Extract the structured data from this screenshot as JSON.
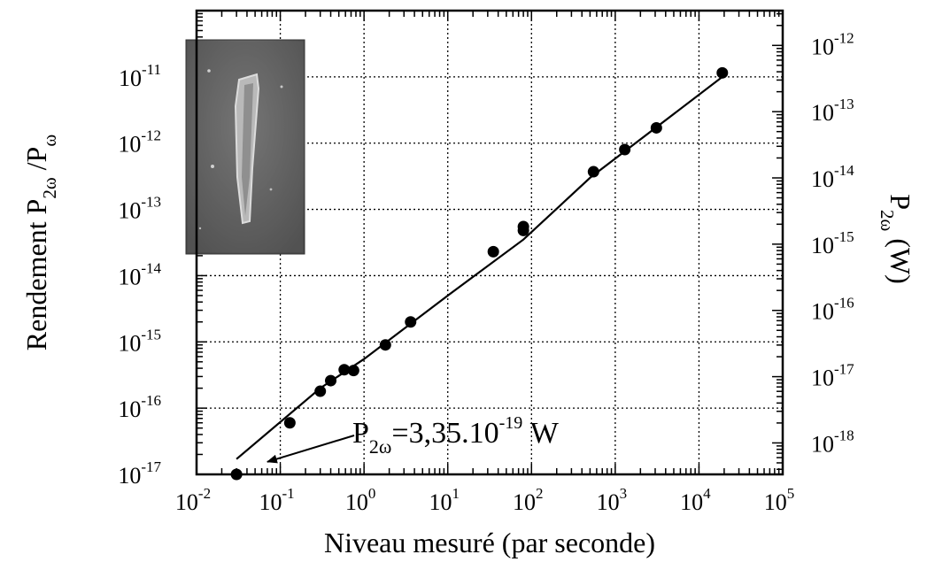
{
  "chart_data": {
    "type": "scatter",
    "xscale": "log",
    "yscale": "log",
    "xlim": [
      0.01,
      100000
    ],
    "ylim": [
      1e-17,
      1e-10
    ],
    "y2lim": [
      3.35e-19,
      3.35e-12
    ],
    "grid": true,
    "xlabel": "Niveau mesuré (par seconde)",
    "ylabel": {
      "main": "Rendement P",
      "sub1": "2ω",
      "mid": " /P",
      "sub2": "ω"
    },
    "y2label": {
      "main": "P",
      "sub": "2ω",
      "unit": " (W)"
    },
    "xticks": [
      {
        "base": "10",
        "exp": "-2"
      },
      {
        "base": "10",
        "exp": "-1"
      },
      {
        "base": "10",
        "exp": "0"
      },
      {
        "base": "10",
        "exp": "1"
      },
      {
        "base": "10",
        "exp": "2"
      },
      {
        "base": "10",
        "exp": "3"
      },
      {
        "base": "10",
        "exp": "4"
      },
      {
        "base": "10",
        "exp": "5"
      }
    ],
    "yticks": [
      {
        "base": "10",
        "exp": "-17"
      },
      {
        "base": "10",
        "exp": "-16"
      },
      {
        "base": "10",
        "exp": "-15"
      },
      {
        "base": "10",
        "exp": "-14"
      },
      {
        "base": "10",
        "exp": "-13"
      },
      {
        "base": "10",
        "exp": "-12"
      },
      {
        "base": "10",
        "exp": "-11"
      }
    ],
    "y2ticks": [
      {
        "base": "10",
        "exp": "-18"
      },
      {
        "base": "10",
        "exp": "-17"
      },
      {
        "base": "10",
        "exp": "-16"
      },
      {
        "base": "10",
        "exp": "-15"
      },
      {
        "base": "10",
        "exp": "-14"
      },
      {
        "base": "10",
        "exp": "-13"
      },
      {
        "base": "10",
        "exp": "-12"
      }
    ],
    "points": [
      {
        "x": 0.03,
        "y": 1e-17
      },
      {
        "x": 0.13,
        "y": 6e-17
      },
      {
        "x": 0.3,
        "y": 1.8e-16
      },
      {
        "x": 0.4,
        "y": 2.6e-16
      },
      {
        "x": 0.58,
        "y": 3.8e-16
      },
      {
        "x": 0.75,
        "y": 3.7e-16
      },
      {
        "x": 1.8,
        "y": 9e-16
      },
      {
        "x": 3.6,
        "y": 2e-15
      },
      {
        "x": 35,
        "y": 2.3e-14
      },
      {
        "x": 80,
        "y": 4.8e-14
      },
      {
        "x": 80,
        "y": 5.5e-14
      },
      {
        "x": 550,
        "y": 3.7e-13
      },
      {
        "x": 1300,
        "y": 8e-13
      },
      {
        "x": 3100,
        "y": 1.7e-12
      },
      {
        "x": 19000,
        "y": 1.15e-11
      }
    ],
    "fit_line": [
      {
        "x": 0.03,
        "y": 1.7e-17
      },
      {
        "x": 0.3,
        "y": 2e-16
      },
      {
        "x": 1.0,
        "y": 5.5e-16
      },
      {
        "x": 10,
        "y": 5e-15
      },
      {
        "x": 80,
        "y": 3.5e-14
      },
      {
        "x": 500,
        "y": 3e-13
      },
      {
        "x": 19000,
        "y": 1e-11
      }
    ],
    "annotation": {
      "label": {
        "main": "P",
        "sub": "2ω",
        "value": "=3,35.10",
        "exp": "-19",
        "unit": " W"
      },
      "arrow_to": {
        "x": 0.07,
        "y": 1.55e-17
      }
    },
    "inset_image": "microscope-photo"
  }
}
